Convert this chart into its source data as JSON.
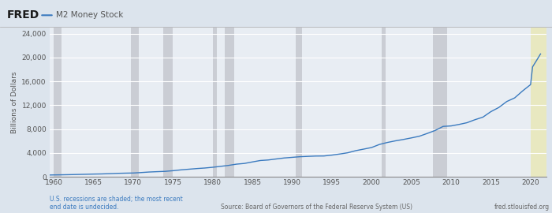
{
  "title": "M2 Money Stock",
  "ylabel": "Billions of Dollars",
  "source_text": "Source: Board of Governors of the Federal Reserve System (US)",
  "recession_text": "U.S. recessions are shaded; the most recent\nend date is undecided.",
  "fred_url": "fred.stlouisfed.org",
  "line_color": "#3a7abf",
  "background_color": "#dce4ed",
  "plot_bg_color": "#e8edf3",
  "recession_color": "#cacdd4",
  "last_recession_color": "#e8e8c0",
  "xlim": [
    1959.5,
    2022.0
  ],
  "ylim": [
    0,
    25000
  ],
  "yticks": [
    0,
    4000,
    8000,
    12000,
    16000,
    20000,
    24000
  ],
  "xticks": [
    1960,
    1965,
    1970,
    1975,
    1980,
    1985,
    1990,
    1995,
    2000,
    2005,
    2010,
    2015,
    2020
  ],
  "recessions": [
    [
      1960.0,
      1961.0
    ],
    [
      1969.75,
      1970.75
    ],
    [
      1973.75,
      1975.0
    ],
    [
      1980.0,
      1980.5
    ],
    [
      1981.5,
      1982.75
    ],
    [
      1990.5,
      1991.25
    ],
    [
      2001.25,
      2001.75
    ],
    [
      2007.75,
      2009.5
    ]
  ],
  "last_recession": [
    2020.0,
    2022.0
  ],
  "data_years": [
    1959.5,
    1960,
    1961,
    1962,
    1963,
    1964,
    1965,
    1966,
    1967,
    1968,
    1969,
    1970,
    1971,
    1972,
    1973,
    1974,
    1975,
    1976,
    1977,
    1978,
    1979,
    1980,
    1981,
    1982,
    1983,
    1984,
    1985,
    1986,
    1987,
    1988,
    1989,
    1990,
    1991,
    1992,
    1993,
    1994,
    1995,
    1996,
    1997,
    1998,
    1999,
    2000,
    2001,
    2002,
    2003,
    2004,
    2005,
    2006,
    2007,
    2008,
    2009,
    2010,
    2011,
    2012,
    2013,
    2014,
    2015,
    2016,
    2017,
    2018,
    2019,
    2020.0,
    2020.25,
    2020.75,
    2021.25
  ],
  "data_values": [
    300,
    315,
    335,
    360,
    390,
    420,
    455,
    480,
    525,
    575,
    610,
    635,
    710,
    800,
    860,
    910,
    1020,
    1160,
    1270,
    1380,
    1470,
    1595,
    1750,
    1910,
    2120,
    2240,
    2490,
    2730,
    2820,
    2990,
    3155,
    3260,
    3370,
    3430,
    3480,
    3490,
    3635,
    3820,
    4030,
    4380,
    4640,
    4910,
    5430,
    5760,
    6030,
    6260,
    6520,
    6800,
    7270,
    7770,
    8450,
    8530,
    8780,
    9070,
    9570,
    10000,
    10920,
    11620,
    12620,
    13230,
    14400,
    15460,
    18430,
    19500,
    20600
  ]
}
